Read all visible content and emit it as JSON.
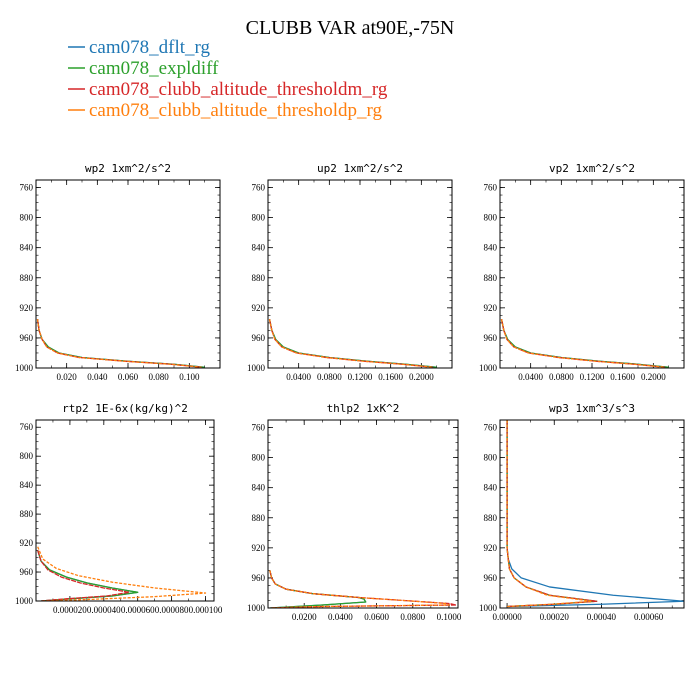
{
  "figure": {
    "title": "CLUBB VAR at90E,-75N",
    "colors": {
      "cam078_dflt_rg": "#1f77b4",
      "cam078_expldiff": "#2ca02c",
      "cam078_clubb_altitude_thresholdm_rg": "#d62728",
      "cam078_clubb_altitude_thresholdp_rg": "#ff7f0e"
    }
  },
  "legend": [
    {
      "name": "cam078_dflt_rg",
      "color": "#1f77b4"
    },
    {
      "name": "cam078_expldiff",
      "color": "#2ca02c"
    },
    {
      "name": "cam078_clubb_altitude_thresholdm_rg",
      "color": "#d62728"
    },
    {
      "name": "cam078_clubb_altitude_thresholdp_rg",
      "color": "#ff7f0e"
    }
  ],
  "chart_data": [
    {
      "type": "line",
      "title": "wp2  1xm^2/s^2",
      "xlim": [
        0,
        0.12
      ],
      "ylim": [
        1000,
        750
      ],
      "yticks": [
        760,
        800,
        840,
        880,
        920,
        960,
        1000
      ],
      "xticks": [
        0.02,
        0.04,
        0.06,
        0.08,
        0.1
      ],
      "xtick_labels": [
        "0.020",
        "0.040",
        "0.060",
        "0.080",
        "0.100"
      ],
      "series": [
        {
          "name": "cam078_dflt_rg",
          "x": [
            0.001,
            0.002,
            0.004,
            0.008,
            0.015,
            0.03,
            0.06,
            0.09,
            0.11
          ],
          "y": [
            935,
            950,
            962,
            972,
            980,
            986,
            991,
            995,
            999
          ]
        },
        {
          "name": "cam078_expldiff",
          "x": [
            0.001,
            0.002,
            0.004,
            0.008,
            0.015,
            0.03,
            0.06,
            0.09,
            0.11
          ],
          "y": [
            935,
            950,
            962,
            972,
            980,
            986,
            991,
            995,
            999
          ]
        },
        {
          "name": "cam078_clubb_altitude_thresholdm_rg",
          "x": [
            0.001,
            0.002,
            0.004,
            0.007,
            0.014,
            0.028,
            0.058,
            0.088,
            0.108
          ],
          "y": [
            935,
            950,
            962,
            972,
            980,
            986,
            991,
            995,
            999
          ]
        },
        {
          "name": "cam078_clubb_altitude_thresholdp_rg",
          "x": [
            0.001,
            0.002,
            0.004,
            0.007,
            0.014,
            0.028,
            0.058,
            0.088,
            0.108
          ],
          "y": [
            935,
            950,
            962,
            972,
            980,
            986,
            991,
            995,
            999
          ]
        }
      ]
    },
    {
      "type": "line",
      "title": "up2  1xm^2/s^2",
      "xlim": [
        0,
        0.24
      ],
      "ylim": [
        1000,
        750
      ],
      "yticks": [
        760,
        800,
        840,
        880,
        920,
        960,
        1000
      ],
      "xticks": [
        0.04,
        0.08,
        0.12,
        0.16,
        0.2
      ],
      "xtick_labels": [
        "0.0400",
        "0.0800",
        "0.1200",
        "0.1600",
        "0.2000"
      ],
      "series": [
        {
          "name": "cam078_dflt_rg",
          "x": [
            0.002,
            0.005,
            0.01,
            0.02,
            0.04,
            0.08,
            0.13,
            0.18,
            0.22
          ],
          "y": [
            935,
            950,
            962,
            972,
            980,
            986,
            991,
            995,
            999
          ]
        },
        {
          "name": "cam078_expldiff",
          "x": [
            0.002,
            0.005,
            0.01,
            0.02,
            0.04,
            0.08,
            0.13,
            0.18,
            0.22
          ],
          "y": [
            935,
            950,
            962,
            972,
            980,
            986,
            991,
            995,
            999
          ]
        },
        {
          "name": "cam078_clubb_altitude_thresholdm_rg",
          "x": [
            0.002,
            0.005,
            0.009,
            0.018,
            0.037,
            0.076,
            0.125,
            0.175,
            0.215
          ],
          "y": [
            935,
            950,
            962,
            972,
            980,
            986,
            991,
            995,
            999
          ]
        },
        {
          "name": "cam078_clubb_altitude_thresholdp_rg",
          "x": [
            0.002,
            0.005,
            0.009,
            0.018,
            0.037,
            0.076,
            0.125,
            0.175,
            0.215
          ],
          "y": [
            935,
            950,
            962,
            972,
            980,
            986,
            991,
            995,
            999
          ]
        }
      ]
    },
    {
      "type": "line",
      "title": "vp2  1xm^2/s^2",
      "xlim": [
        0,
        0.24
      ],
      "ylim": [
        1000,
        750
      ],
      "yticks": [
        760,
        800,
        840,
        880,
        920,
        960,
        1000
      ],
      "xticks": [
        0.04,
        0.08,
        0.12,
        0.16,
        0.2
      ],
      "xtick_labels": [
        "0.0400",
        "0.0800",
        "0.1200",
        "0.1600",
        "0.2000"
      ],
      "series": [
        {
          "name": "cam078_dflt_rg",
          "x": [
            0.002,
            0.005,
            0.01,
            0.02,
            0.04,
            0.08,
            0.13,
            0.18,
            0.22
          ],
          "y": [
            935,
            950,
            962,
            972,
            980,
            986,
            991,
            995,
            999
          ]
        },
        {
          "name": "cam078_expldiff",
          "x": [
            0.002,
            0.005,
            0.01,
            0.02,
            0.04,
            0.08,
            0.13,
            0.18,
            0.22
          ],
          "y": [
            935,
            950,
            962,
            972,
            980,
            986,
            991,
            995,
            999
          ]
        },
        {
          "name": "cam078_clubb_altitude_thresholdm_rg",
          "x": [
            0.002,
            0.005,
            0.009,
            0.018,
            0.037,
            0.076,
            0.125,
            0.175,
            0.215
          ],
          "y": [
            935,
            950,
            962,
            972,
            980,
            986,
            991,
            995,
            999
          ]
        },
        {
          "name": "cam078_clubb_altitude_thresholdp_rg",
          "x": [
            0.002,
            0.005,
            0.009,
            0.018,
            0.037,
            0.076,
            0.125,
            0.175,
            0.215
          ],
          "y": [
            935,
            950,
            962,
            972,
            980,
            986,
            991,
            995,
            999
          ]
        }
      ]
    },
    {
      "type": "line",
      "title": "rtp2  1E-6x(kg/kg)^2",
      "xlim": [
        0,
        0.000105
      ],
      "ylim": [
        1000,
        750
      ],
      "yticks": [
        760,
        800,
        840,
        880,
        920,
        960,
        1000
      ],
      "xticks": [
        2e-05,
        4e-05,
        6e-05,
        8e-05,
        0.0001
      ],
      "xtick_labels": [
        "0.000020",
        "0.000040",
        "0.000060",
        "0.000080",
        "0.000100"
      ],
      "series": [
        {
          "name": "cam078_dflt_rg",
          "x": [
            1e-06,
            3e-06,
            8e-06,
            1.8e-05,
            3e-05,
            4.5e-05,
            6e-05,
            4.5e-05,
            2e-05,
            3e-06
          ],
          "y": [
            930,
            945,
            957,
            967,
            975,
            982,
            988,
            993,
            997,
            1000
          ]
        },
        {
          "name": "cam078_expldiff",
          "x": [
            1e-06,
            3e-06,
            8e-06,
            1.8e-05,
            3e-05,
            4.5e-05,
            6e-05,
            4.5e-05,
            2e-05,
            3e-06
          ],
          "y": [
            930,
            945,
            957,
            967,
            975,
            982,
            988,
            993,
            997,
            1000
          ]
        },
        {
          "name": "cam078_clubb_altitude_thresholdm_rg",
          "x": [
            1e-06,
            3e-06,
            7e-06,
            1.5e-05,
            2.6e-05,
            4e-05,
            5.5e-05,
            4.2e-05,
            1.8e-05,
            3e-06
          ],
          "y": [
            930,
            945,
            957,
            967,
            975,
            982,
            988,
            993,
            997,
            1000
          ]
        },
        {
          "name": "cam078_clubb_altitude_thresholdp_rg",
          "x": [
            1e-06,
            4e-06,
            1.2e-05,
            2.5e-05,
            4.5e-05,
            7e-05,
            0.0001,
            7e-05,
            3e-05,
            3e-06
          ],
          "y": [
            925,
            942,
            955,
            965,
            974,
            982,
            989,
            994,
            998,
            1000
          ]
        }
      ]
    },
    {
      "type": "line",
      "title": "thlp2  1xK^2",
      "xlim": [
        0,
        0.105
      ],
      "ylim": [
        1000,
        750
      ],
      "yticks": [
        760,
        800,
        840,
        880,
        920,
        960,
        1000
      ],
      "xticks": [
        0.02,
        0.04,
        0.06,
        0.08,
        0.1
      ],
      "xtick_labels": [
        "0.0200",
        "0.0400",
        "0.0600",
        "0.0800",
        "0.1000"
      ],
      "series": [
        {
          "name": "cam078_dflt_rg",
          "x": [
            0.001,
            0.002,
            0.004,
            0.01,
            0.025,
            0.05,
            0.053,
            0.054,
            0.03,
            0.001
          ],
          "y": [
            950,
            960,
            968,
            975,
            981,
            986,
            988,
            992,
            996,
            1000
          ]
        },
        {
          "name": "cam078_expldiff",
          "x": [
            0.001,
            0.002,
            0.004,
            0.01,
            0.025,
            0.05,
            0.053,
            0.054,
            0.03,
            0.001
          ],
          "y": [
            950,
            960,
            968,
            975,
            981,
            986,
            988,
            992,
            996,
            1000
          ]
        },
        {
          "name": "cam078_clubb_altitude_thresholdm_rg",
          "x": [
            0.001,
            0.002,
            0.004,
            0.01,
            0.025,
            0.05,
            0.075,
            0.1,
            0.104,
            0.03,
            0.001
          ],
          "y": [
            950,
            960,
            968,
            975,
            981,
            986,
            990,
            994,
            996,
            998,
            1000
          ]
        },
        {
          "name": "cam078_clubb_altitude_thresholdp_rg",
          "x": [
            0.001,
            0.002,
            0.004,
            0.01,
            0.025,
            0.05,
            0.075,
            0.098,
            0.1,
            0.03,
            0.001
          ],
          "y": [
            950,
            960,
            968,
            975,
            981,
            986,
            990,
            994,
            996,
            998,
            1000
          ]
        }
      ]
    },
    {
      "type": "line",
      "title": "wp3  1xm^3/s^3",
      "xlim": [
        -3e-05,
        0.00075
      ],
      "ylim": [
        1000,
        750
      ],
      "yticks": [
        760,
        800,
        840,
        880,
        920,
        960,
        1000
      ],
      "xticks": [
        0.0,
        0.0002,
        0.0004,
        0.0006
      ],
      "xtick_labels": [
        "0.00000",
        "0.00020",
        "0.00040",
        "0.00060"
      ],
      "series": [
        {
          "name": "cam078_dflt_rg",
          "x": [
            0.0,
            0.0,
            5e-06,
            2e-05,
            6e-05,
            0.00018,
            0.00045,
            0.00075,
            0.0004,
            0.0
          ],
          "y": [
            750,
            920,
            935,
            948,
            960,
            972,
            983,
            991,
            995,
            998
          ]
        },
        {
          "name": "cam078_expldiff",
          "x": [
            0.0,
            0.0,
            5e-06,
            1e-05,
            3e-05,
            8e-05,
            0.00018,
            0.00038,
            0.0002,
            0.0
          ],
          "y": [
            750,
            920,
            935,
            948,
            960,
            972,
            983,
            991,
            995,
            998
          ]
        },
        {
          "name": "cam078_clubb_altitude_thresholdm_rg",
          "x": [
            0.0,
            0.0,
            5e-06,
            1e-05,
            3e-05,
            8e-05,
            0.00018,
            0.00038,
            0.0002,
            0.0
          ],
          "y": [
            750,
            920,
            935,
            948,
            960,
            972,
            983,
            991,
            995,
            998
          ]
        },
        {
          "name": "cam078_clubb_altitude_thresholdp_rg",
          "x": [
            0.0,
            0.0,
            5e-06,
            1e-05,
            3e-05,
            8e-05,
            0.00017,
            0.00036,
            0.00019,
            0.0
          ],
          "y": [
            750,
            920,
            935,
            948,
            960,
            972,
            983,
            991,
            995,
            998
          ]
        }
      ]
    }
  ]
}
